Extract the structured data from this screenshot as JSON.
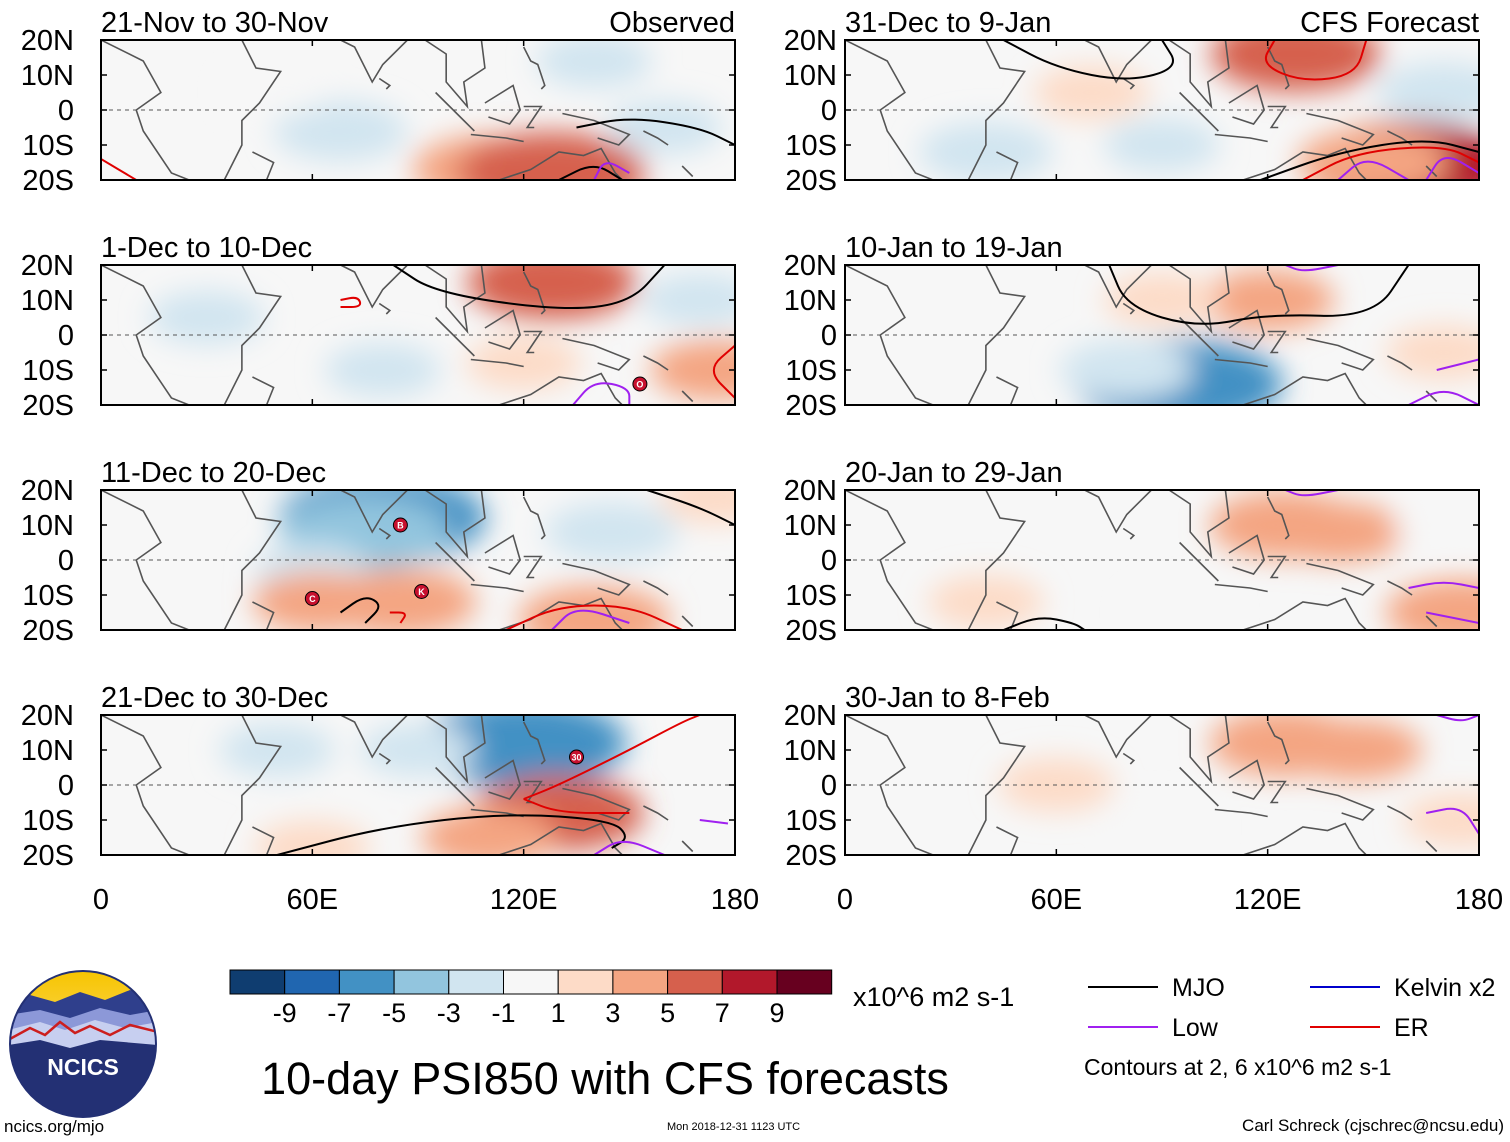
{
  "chart_data": {
    "type": "heatmap",
    "title": "10-day PSI850 with CFS forecasts",
    "column_headers": [
      "Observed",
      "CFS Forecast"
    ],
    "x_ticks": [
      "0",
      "60E",
      "120E",
      "180"
    ],
    "y_ticks": [
      "20N",
      "10N",
      "0",
      "10S",
      "20S"
    ],
    "xlim": [
      0,
      180
    ],
    "ylim": [
      -20,
      20
    ],
    "units": "x10^6 m2 s-1",
    "panels": [
      {
        "period": "21-Nov to 30-Nov",
        "column": "Observed",
        "anomalies": [
          {
            "lon": 68,
            "lat": -6,
            "value": -3
          },
          {
            "lon": 140,
            "lat": 14,
            "value": -2
          },
          {
            "lon": 110,
            "lat": -17,
            "value": 4
          },
          {
            "lon": 128,
            "lat": -18,
            "value": 6
          },
          {
            "lon": 160,
            "lat": -5,
            "value": -2
          },
          {
            "lon": 50,
            "lat": 5,
            "value": -1
          }
        ],
        "mjo": [
          [
            [
              135,
              -5
            ],
            [
              150,
              -2
            ],
            [
              170,
              -5
            ],
            [
              180,
              -10
            ]
          ],
          [
            [
              130,
              -20
            ],
            [
              140,
              -15
            ],
            [
              148,
              -20
            ]
          ]
        ],
        "er": [
          [
            [
              0,
              -14
            ],
            [
              10,
              -20
            ]
          ]
        ],
        "low": [
          [
            [
              140,
              -20
            ],
            [
              143,
              -14
            ],
            [
              150,
              -18
            ]
          ]
        ],
        "tc": []
      },
      {
        "period": "31-Dec to 9-Jan",
        "column": "CFS Forecast",
        "anomalies": [
          {
            "lon": 40,
            "lat": -12,
            "value": -3
          },
          {
            "lon": 90,
            "lat": -10,
            "value": -2
          },
          {
            "lon": 128,
            "lat": 16,
            "value": 5
          },
          {
            "lon": 160,
            "lat": -16,
            "value": 7
          },
          {
            "lon": 150,
            "lat": -15,
            "value": 4
          },
          {
            "lon": 170,
            "lat": 5,
            "value": -3
          },
          {
            "lon": 70,
            "lat": 5,
            "value": 2
          }
        ],
        "mjo": [
          [
            [
              45,
              20
            ],
            [
              60,
              12
            ],
            [
              80,
              8
            ],
            [
              95,
              12
            ],
            [
              90,
              20
            ]
          ],
          [
            [
              118,
              -20
            ],
            [
              140,
              -12
            ],
            [
              165,
              -8
            ],
            [
              180,
              -12
            ]
          ]
        ],
        "er": [
          [
            [
              122,
              20
            ],
            [
              118,
              13
            ],
            [
              130,
              8
            ],
            [
              145,
              10
            ],
            [
              148,
              20
            ]
          ],
          [
            [
              130,
              -20
            ],
            [
              145,
              -12
            ],
            [
              170,
              -10
            ],
            [
              180,
              -15
            ]
          ]
        ],
        "low": [
          [
            [
              140,
              -20
            ],
            [
              148,
              -13
            ],
            [
              160,
              -20
            ]
          ],
          [
            [
              165,
              -20
            ],
            [
              170,
              -12
            ],
            [
              180,
              -18
            ]
          ]
        ],
        "tc": []
      },
      {
        "period": "1-Dec to 10-Dec",
        "column": "Observed",
        "anomalies": [
          {
            "lon": 30,
            "lat": 5,
            "value": -2
          },
          {
            "lon": 80,
            "lat": -10,
            "value": -2
          },
          {
            "lon": 128,
            "lat": 15,
            "value": 5
          },
          {
            "lon": 175,
            "lat": -10,
            "value": 3
          },
          {
            "lon": 170,
            "lat": 10,
            "value": -2
          },
          {
            "lon": 120,
            "lat": -8,
            "value": 2
          }
        ],
        "mjo": [
          [
            [
              83,
              20
            ],
            [
              95,
              12
            ],
            [
              130,
              7
            ],
            [
              150,
              9
            ],
            [
              160,
              20
            ]
          ]
        ],
        "er": [
          [
            [
              68,
              10
            ],
            [
              73,
              11
            ],
            [
              74,
              8
            ],
            [
              68,
              8
            ]
          ],
          [
            [
              180,
              -3
            ],
            [
              172,
              -10
            ],
            [
              180,
              -18
            ]
          ]
        ],
        "low": [
          [
            [
              134,
              -20
            ],
            [
              140,
              -13
            ],
            [
              150,
              -15
            ],
            [
              150,
              -20
            ]
          ]
        ],
        "tc": [
          {
            "lon": 153,
            "lat": -14,
            "label": "O"
          }
        ]
      },
      {
        "period": "10-Jan to 19-Jan",
        "column": "CFS Forecast",
        "anomalies": [
          {
            "lon": 95,
            "lat": -14,
            "value": -7
          },
          {
            "lon": 80,
            "lat": -10,
            "value": -3
          },
          {
            "lon": 120,
            "lat": 10,
            "value": 3
          },
          {
            "lon": 90,
            "lat": 10,
            "value": 2
          },
          {
            "lon": 170,
            "lat": -5,
            "value": 2
          }
        ],
        "mjo": [
          [
            [
              75,
              20
            ],
            [
              80,
              8
            ],
            [
              100,
              2
            ],
            [
              120,
              6
            ],
            [
              150,
              5
            ],
            [
              160,
              20
            ]
          ]
        ],
        "er": [],
        "low": [
          [
            [
              125,
              20
            ],
            [
              130,
              18
            ],
            [
              140,
              20
            ]
          ],
          [
            [
              168,
              -10
            ],
            [
              180,
              -7
            ]
          ],
          [
            [
              160,
              -20
            ],
            [
              170,
              -15
            ],
            [
              180,
              -20
            ]
          ]
        ],
        "tc": []
      },
      {
        "period": "11-Dec to 20-Dec",
        "column": "Observed",
        "anomalies": [
          {
            "lon": 80,
            "lat": 12,
            "value": -7
          },
          {
            "lon": 75,
            "lat": 8,
            "value": -5
          },
          {
            "lon": 145,
            "lat": 8,
            "value": -3
          },
          {
            "lon": 60,
            "lat": -3,
            "value": -2
          },
          {
            "lon": 85,
            "lat": -12,
            "value": 4
          },
          {
            "lon": 62,
            "lat": -12,
            "value": 3
          },
          {
            "lon": 140,
            "lat": -17,
            "value": 4
          },
          {
            "lon": 175,
            "lat": 18,
            "value": 2
          }
        ],
        "mjo": [
          [
            [
              68,
              -15
            ],
            [
              75,
              -10
            ],
            [
              80,
              -13
            ],
            [
              75,
              -18
            ]
          ],
          [
            [
              155,
              20
            ],
            [
              170,
              15
            ],
            [
              180,
              10
            ]
          ]
        ],
        "er": [
          [
            [
              115,
              -20
            ],
            [
              130,
              -13
            ],
            [
              150,
              -13
            ],
            [
              165,
              -20
            ]
          ],
          [
            [
              82,
              -15
            ],
            [
              87,
              -15
            ],
            [
              85,
              -18
            ]
          ]
        ],
        "low": [
          [
            [
              128,
              -20
            ],
            [
              135,
              -13
            ],
            [
              150,
              -18
            ]
          ]
        ],
        "tc": [
          {
            "lon": 85,
            "lat": 10,
            "label": "B"
          },
          {
            "lon": 60,
            "lat": -11,
            "label": "C"
          },
          {
            "lon": 91,
            "lat": -9,
            "label": "K"
          }
        ]
      },
      {
        "period": "20-Jan to 29-Jan",
        "column": "CFS Forecast",
        "anomalies": [
          {
            "lon": 125,
            "lat": 10,
            "value": 4
          },
          {
            "lon": 140,
            "lat": 8,
            "value": 3
          },
          {
            "lon": 175,
            "lat": -15,
            "value": 4
          },
          {
            "lon": 40,
            "lat": -12,
            "value": 2
          },
          {
            "lon": 95,
            "lat": -15,
            "value": -1
          },
          {
            "lon": 170,
            "lat": 10,
            "value": -1
          }
        ],
        "mjo": [
          [
            [
              45,
              -20
            ],
            [
              55,
              -16
            ],
            [
              65,
              -18
            ],
            [
              68,
              -20
            ]
          ]
        ],
        "er": [],
        "low": [
          [
            [
              125,
              20
            ],
            [
              130,
              18
            ],
            [
              140,
              20
            ]
          ],
          [
            [
              160,
              -8
            ],
            [
              170,
              -6
            ],
            [
              180,
              -8
            ]
          ],
          [
            [
              165,
              -15
            ],
            [
              180,
              -18
            ]
          ]
        ],
        "tc": []
      },
      {
        "period": "21-Dec to 30-Dec",
        "column": "Observed",
        "anomalies": [
          {
            "lon": 120,
            "lat": 12,
            "value": -7
          },
          {
            "lon": 90,
            "lat": 10,
            "value": -2
          },
          {
            "lon": 50,
            "lat": 10,
            "value": -2
          },
          {
            "lon": 130,
            "lat": -8,
            "value": 5
          },
          {
            "lon": 110,
            "lat": -15,
            "value": 3
          },
          {
            "lon": 60,
            "lat": -18,
            "value": 2
          }
        ],
        "mjo": [
          [
            [
              50,
              -20
            ],
            [
              80,
              -12
            ],
            [
              115,
              -8
            ],
            [
              145,
              -10
            ],
            [
              150,
              -15
            ],
            [
              145,
              -18
            ]
          ]
        ],
        "er": [
          [
            [
              120,
              -4
            ],
            [
              130,
              0
            ],
            [
              150,
              10
            ],
            [
              165,
              18
            ],
            [
              170,
              20
            ]
          ],
          [
            [
              120,
              -4
            ],
            [
              130,
              -8
            ],
            [
              150,
              -8
            ]
          ]
        ],
        "low": [
          [
            [
              140,
              -20
            ],
            [
              148,
              -15
            ],
            [
              160,
              -20
            ]
          ],
          [
            [
              170,
              -10
            ],
            [
              178,
              -11
            ]
          ]
        ],
        "tc": [
          {
            "lon": 135,
            "lat": 8,
            "label": "30"
          }
        ]
      },
      {
        "period": "30-Jan to 8-Feb",
        "column": "CFS Forecast",
        "anomalies": [
          {
            "lon": 125,
            "lat": 12,
            "value": 4
          },
          {
            "lon": 145,
            "lat": 10,
            "value": 3
          },
          {
            "lon": 90,
            "lat": -12,
            "value": -1
          },
          {
            "lon": 175,
            "lat": -10,
            "value": 2
          },
          {
            "lon": 60,
            "lat": 0,
            "value": 2
          }
        ],
        "mjo": [],
        "er": [],
        "low": [
          [
            [
              168,
              20
            ],
            [
              175,
              18
            ],
            [
              180,
              20
            ]
          ],
          [
            [
              165,
              -8
            ],
            [
              175,
              -6
            ],
            [
              180,
              -14
            ]
          ]
        ],
        "tc": []
      }
    ],
    "colorbar": {
      "labels": [
        "-9",
        "-7",
        "-5",
        "-3",
        "-1",
        "1",
        "3",
        "5",
        "7",
        "9"
      ],
      "colors": [
        "#0f3d70",
        "#2066b0",
        "#4291c4",
        "#92c5de",
        "#d1e5f0",
        "#f7f7f7",
        "#fddbc7",
        "#f4a582",
        "#d6604d",
        "#b2182b",
        "#67001f"
      ],
      "units_label": "x10^6 m2 s-1"
    },
    "legend": {
      "items": [
        {
          "label": "MJO",
          "color": "#000000"
        },
        {
          "label": "Kelvin x2",
          "color": "#0000cc"
        },
        {
          "label": "Low",
          "color": "#a020f0"
        },
        {
          "label": "ER",
          "color": "#e00000"
        }
      ],
      "note": "Contours at 2, 6 x10^6 m2 s-1"
    }
  },
  "branding": {
    "org": "NCICS",
    "url": "ncics.org/mjo",
    "timestamp": "Mon 2018-12-31 1123 UTC",
    "credit": "Carl Schreck (cjschrec@ncsu.edu)"
  }
}
